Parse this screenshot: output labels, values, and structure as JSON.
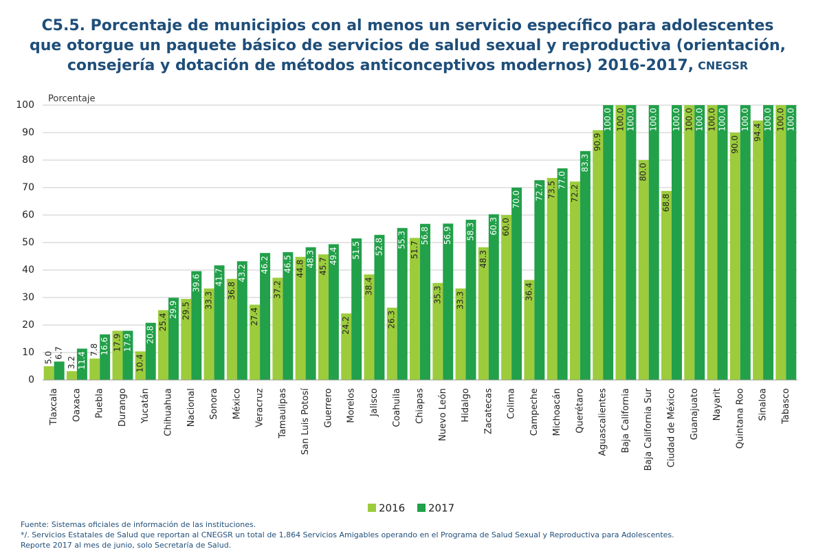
{
  "chart_data": {
    "type": "bar",
    "title_lines": [
      "C5.5. Porcentaje de municipios con al menos un servicio específico para adolescentes",
      "que otorgue un paquete básico de servicios de salud sexual y reproductiva (orientación,",
      "consejería y dotación de métodos anticonceptivos modernos) 2016-2017,"
    ],
    "title_source": "CNEGSR",
    "y_label": "Porcentaje",
    "categories": [
      "Tlaxcala",
      "Oaxaca",
      "Puebla",
      "Durango",
      "Yucatán",
      "Chihuahua",
      "Nacional",
      "Sonora",
      "México",
      "Veracruz",
      "Tamaulipas",
      "San Luis Potosí",
      "Guerrero",
      "Morelos",
      "Jalisco",
      "Coahuila",
      "Chiapas",
      "Nuevo León",
      "Hidalgo",
      "Zacatecas",
      "Colima",
      "Campeche",
      "Michoacán",
      "Querétaro",
      "Aguascalientes",
      "Baja California",
      "Baja California Sur",
      "Ciudad de México",
      "Guanajuato",
      "Nayarit",
      "Quintana Roo",
      "Sinaloa",
      "Tabasco"
    ],
    "series": [
      {
        "name": "2016",
        "color": "#9ccc3c",
        "values": [
          5.0,
          3.2,
          7.8,
          17.9,
          10.4,
          25.4,
          29.5,
          33.3,
          36.8,
          27.4,
          37.2,
          44.8,
          45.7,
          24.2,
          38.4,
          26.3,
          51.7,
          35.3,
          33.3,
          48.3,
          60.0,
          36.4,
          73.5,
          72.2,
          90.9,
          100.0,
          80.0,
          68.8,
          100.0,
          100.0,
          90.0,
          94.4,
          100.0
        ],
        "value_labels": [
          "5.0",
          "3.2",
          "7.8",
          "17.9",
          "10.4",
          "25.4",
          "29.5",
          "33.3",
          "36.8",
          "27.4",
          "37.2",
          "44.8",
          "45.7",
          "24.2",
          "38.4",
          "26.3",
          "51.7",
          "35.3",
          "33.3",
          "48.3",
          "60.0",
          "36.4",
          "73.5",
          "72.2",
          "90.9",
          "100.0",
          "80.0",
          "68.8",
          "100.0",
          "100.0",
          "90.0",
          "94.4",
          "100.0"
        ]
      },
      {
        "name": "2017",
        "color": "#22a04a",
        "values": [
          6.7,
          11.4,
          16.6,
          17.9,
          20.8,
          29.9,
          39.6,
          41.7,
          43.2,
          46.2,
          46.5,
          48.3,
          49.4,
          51.5,
          52.8,
          55.3,
          56.8,
          56.9,
          58.3,
          60.3,
          70.0,
          72.7,
          77.0,
          83.3,
          100.0,
          100.0,
          100.0,
          100.0,
          100.0,
          100.0,
          100.0,
          100.0,
          100.0
        ],
        "value_labels": [
          "6.7",
          "11.4",
          "16.6",
          "17.9",
          "20.8",
          "29.9",
          "39.6",
          "41.7",
          "43.2",
          "46.2",
          "46.5",
          "48.3",
          "49.4",
          "51.5",
          "52.8",
          "55.3",
          "56.8",
          "56.9",
          "58.3",
          "60.3",
          "70.0",
          "72.7",
          "77.0",
          "83.3",
          "100.0",
          "100.0",
          "100.0",
          "100.0",
          "100.0",
          "100.0",
          "100.0",
          "100.0",
          "100.0"
        ]
      }
    ],
    "ylim": [
      0,
      100
    ],
    "yticks": [
      0,
      10,
      20,
      30,
      40,
      50,
      60,
      70,
      80,
      90,
      100
    ],
    "grid": true,
    "legend": "bottom",
    "footnotes": [
      "Fuente: Sistemas oficiales de información de las instituciones.",
      "*/. Servicios Estatales de Salud que reportan al CNEGSR un total de 1,864 Servicios Amigables operando en el Programa de Salud Sexual y Reproductiva para Adolescentes.",
      "Reporte 2017 al mes de junio, solo Secretaría de Salud."
    ]
  }
}
